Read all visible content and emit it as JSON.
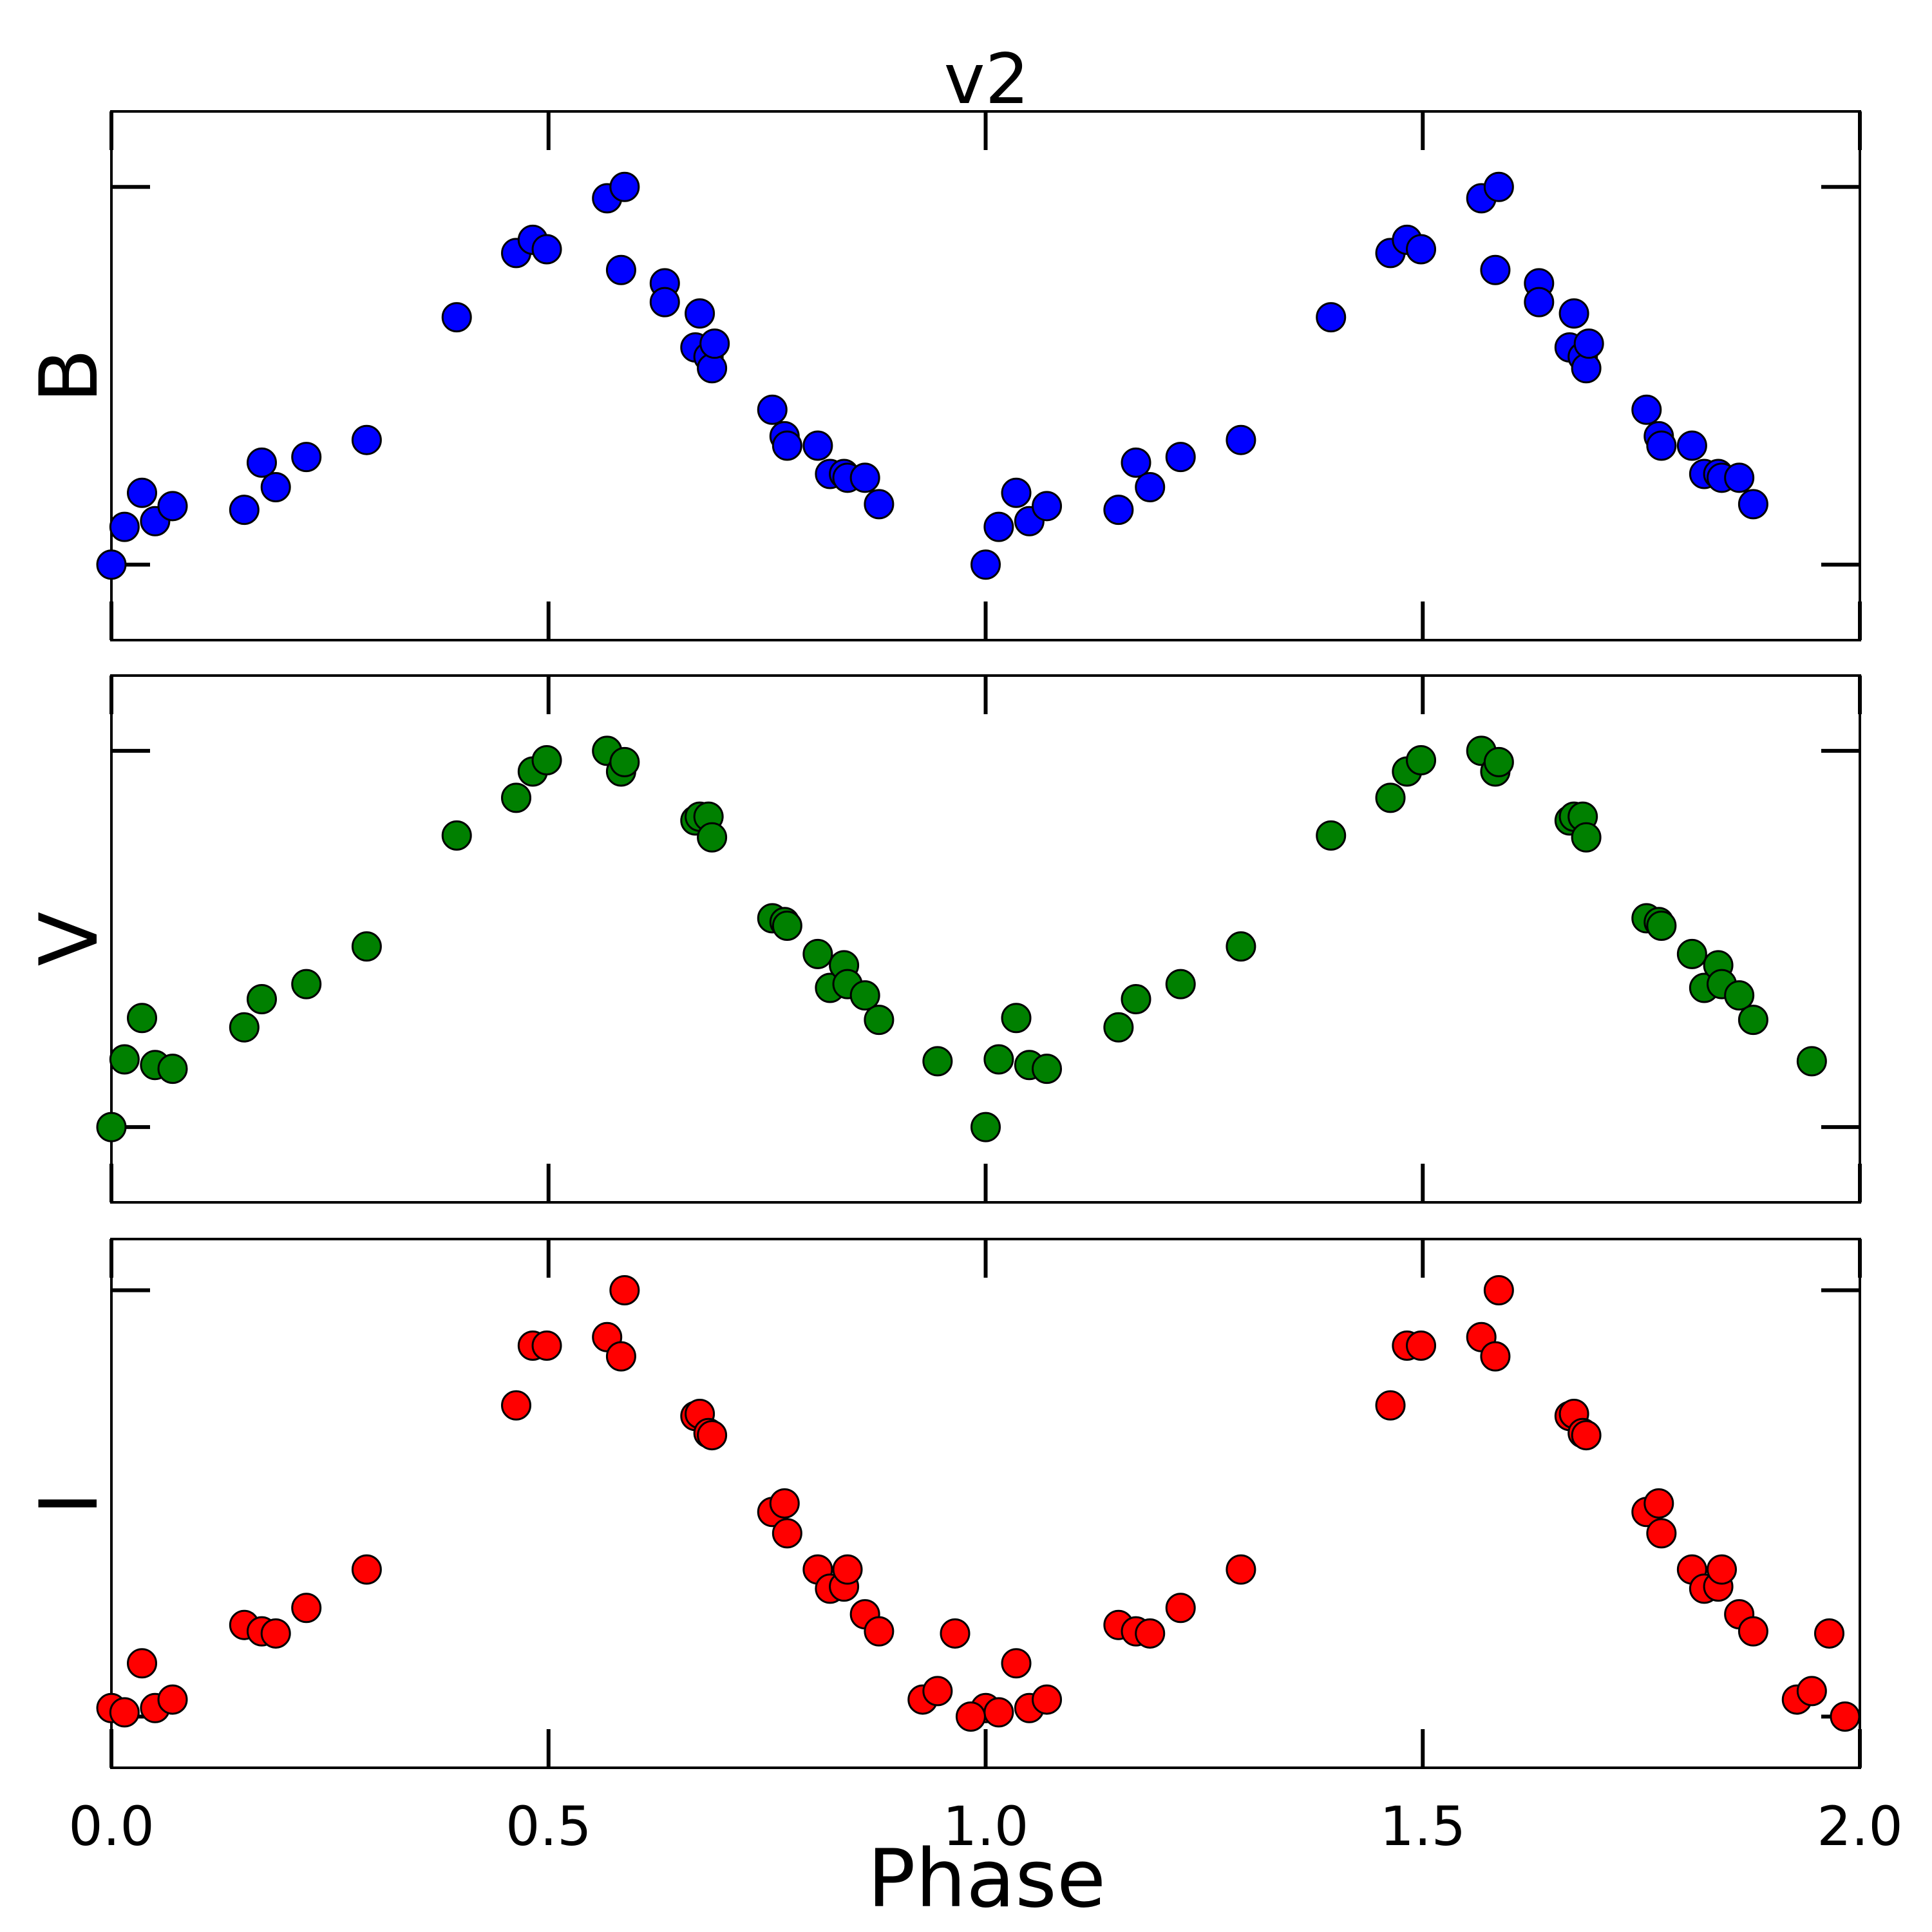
{
  "chart_data": {
    "type": "scatter",
    "title": "v2",
    "xlabel": "Phase",
    "xlim": [
      0.0,
      2.0
    ],
    "xticks": [
      "0.0",
      "0.5",
      "1.0",
      "1.5",
      "2.0"
    ],
    "grid": false,
    "panels": [
      {
        "name": "B",
        "ylabel": "B",
        "color": "#0000ff",
        "ylim": [
          -0.2,
          1.2
        ],
        "points": [
          [
            0.0,
            0.0
          ],
          [
            0.015,
            0.1
          ],
          [
            0.035,
            0.19
          ],
          [
            0.05,
            0.115
          ],
          [
            0.07,
            0.155
          ],
          [
            0.152,
            0.145
          ],
          [
            0.172,
            0.27
          ],
          [
            0.188,
            0.205
          ],
          [
            0.223,
            0.285
          ],
          [
            0.292,
            0.33
          ],
          [
            0.395,
            0.655
          ],
          [
            0.463,
            0.825
          ],
          [
            0.482,
            0.86
          ],
          [
            0.498,
            0.835
          ],
          [
            0.567,
            0.97
          ],
          [
            0.587,
            1.0
          ],
          [
            0.583,
            0.78
          ],
          [
            0.633,
            0.745
          ],
          [
            0.633,
            0.695
          ],
          [
            0.673,
            0.665
          ],
          [
            0.668,
            0.575
          ],
          [
            0.683,
            0.55
          ],
          [
            0.687,
            0.52
          ],
          [
            0.69,
            0.585
          ],
          [
            0.756,
            0.41
          ],
          [
            0.77,
            0.34
          ],
          [
            0.773,
            0.315
          ],
          [
            0.808,
            0.315
          ],
          [
            0.822,
            0.24
          ],
          [
            0.838,
            0.24
          ],
          [
            0.842,
            0.23
          ],
          [
            0.862,
            0.23
          ],
          [
            0.878,
            0.16
          ]
        ]
      },
      {
        "name": "V",
        "ylabel": "V",
        "color": "#008000",
        "ylim": [
          -0.2,
          1.2
        ],
        "points": [
          [
            0.0,
            0.0
          ],
          [
            0.015,
            0.18
          ],
          [
            0.035,
            0.29
          ],
          [
            0.05,
            0.165
          ],
          [
            0.07,
            0.155
          ],
          [
            0.152,
            0.265
          ],
          [
            0.172,
            0.34
          ],
          [
            0.223,
            0.38
          ],
          [
            0.292,
            0.48
          ],
          [
            0.395,
            0.775
          ],
          [
            0.463,
            0.875
          ],
          [
            0.482,
            0.945
          ],
          [
            0.498,
            0.975
          ],
          [
            0.567,
            1.0
          ],
          [
            0.583,
            0.945
          ],
          [
            0.587,
            0.97
          ],
          [
            0.668,
            0.815
          ],
          [
            0.673,
            0.825
          ],
          [
            0.683,
            0.825
          ],
          [
            0.687,
            0.77
          ],
          [
            0.756,
            0.555
          ],
          [
            0.77,
            0.545
          ],
          [
            0.773,
            0.535
          ],
          [
            0.808,
            0.46
          ],
          [
            0.822,
            0.37
          ],
          [
            0.838,
            0.43
          ],
          [
            0.842,
            0.38
          ],
          [
            0.862,
            0.35
          ],
          [
            0.878,
            0.285
          ],
          [
            0.945,
            0.175
          ]
        ]
      },
      {
        "name": "I",
        "ylabel": "I",
        "color": "#ff0000",
        "ylim": [
          -0.12,
          1.12
        ],
        "points": [
          [
            0.0,
            0.02
          ],
          [
            0.015,
            0.01
          ],
          [
            0.035,
            0.125
          ],
          [
            0.05,
            0.02
          ],
          [
            0.07,
            0.04
          ],
          [
            0.152,
            0.215
          ],
          [
            0.172,
            0.2
          ],
          [
            0.188,
            0.195
          ],
          [
            0.223,
            0.255
          ],
          [
            0.292,
            0.345
          ],
          [
            0.463,
            0.73
          ],
          [
            0.482,
            0.87
          ],
          [
            0.498,
            0.87
          ],
          [
            0.567,
            0.89
          ],
          [
            0.583,
            0.845
          ],
          [
            0.587,
            1.0
          ],
          [
            0.668,
            0.705
          ],
          [
            0.673,
            0.71
          ],
          [
            0.683,
            0.665
          ],
          [
            0.687,
            0.66
          ],
          [
            0.756,
            0.48
          ],
          [
            0.77,
            0.5
          ],
          [
            0.773,
            0.43
          ],
          [
            0.808,
            0.345
          ],
          [
            0.822,
            0.3
          ],
          [
            0.838,
            0.305
          ],
          [
            0.842,
            0.345
          ],
          [
            0.862,
            0.24
          ],
          [
            0.878,
            0.2
          ],
          [
            0.928,
            0.04
          ],
          [
            0.945,
            0.06
          ],
          [
            0.965,
            0.195
          ],
          [
            0.983,
            0.0
          ]
        ]
      }
    ]
  }
}
